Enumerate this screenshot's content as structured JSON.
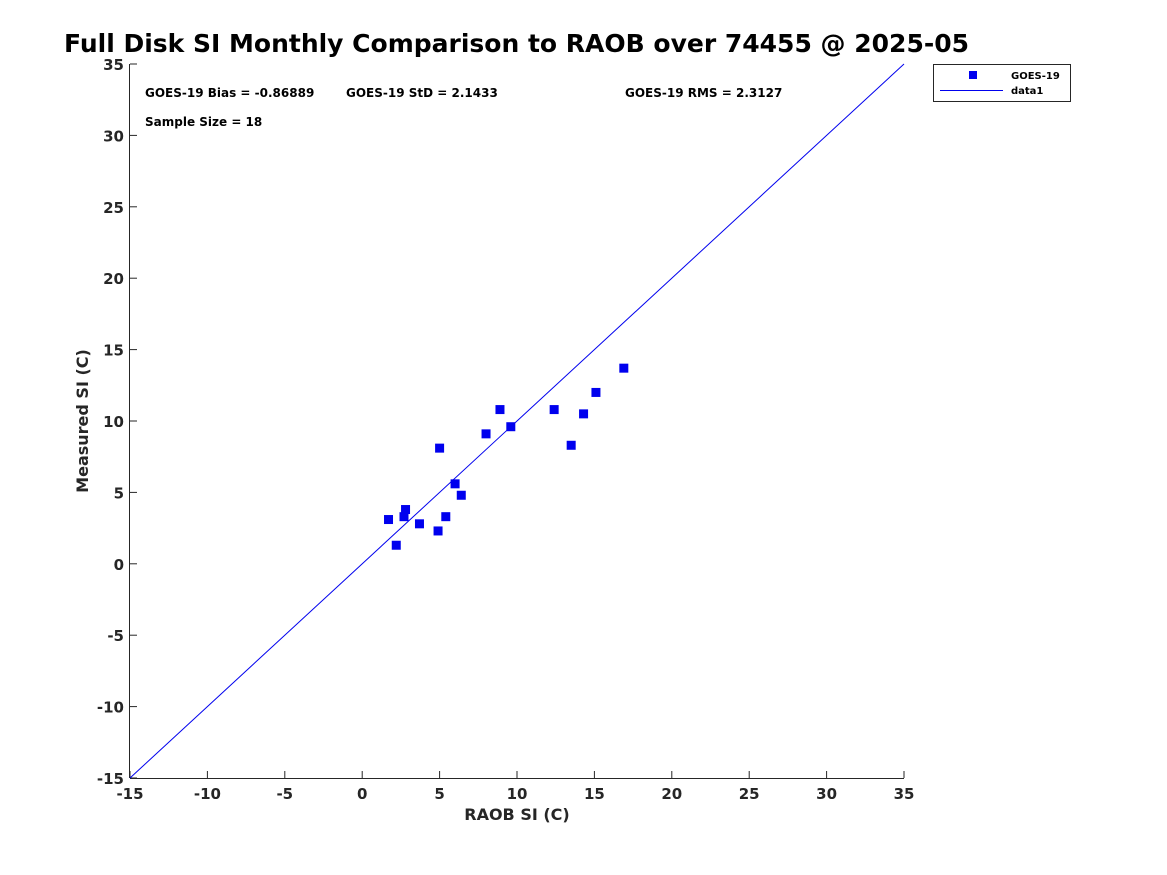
{
  "chart_data": {
    "type": "scatter",
    "title": "Full Disk SI Monthly Comparison to RAOB over 74455 @ 2025-05",
    "xlabel": "RAOB SI (C)",
    "ylabel": "Measured SI (C)",
    "xlim": [
      -15,
      35
    ],
    "ylim": [
      -15,
      35
    ],
    "xticks": [
      "-15",
      "-10",
      "-5",
      "0",
      "5",
      "10",
      "15",
      "20",
      "25",
      "30",
      "35"
    ],
    "yticks": [
      "35",
      "30",
      "25",
      "20",
      "15",
      "10",
      "5",
      "0",
      "-5",
      "-10",
      "-15"
    ],
    "annotations": {
      "bias": "GOES-19 Bias = -0.86889",
      "std": "GOES-19 StD = 2.1433",
      "rms": "GOES-19 RMS = 2.3127",
      "sample": "Sample Size = 18"
    },
    "legend": {
      "position": "outside top-right",
      "entries": [
        "GOES-19",
        "data1"
      ]
    },
    "marker_color": "#0000ee",
    "line_color": "#0000ee",
    "series": [
      {
        "name": "GOES-19",
        "type": "scatter",
        "x": [
          1.7,
          2.2,
          2.7,
          2.8,
          3.7,
          4.9,
          5.0,
          5.4,
          6.0,
          6.4,
          8.0,
          8.9,
          9.6,
          12.4,
          13.5,
          14.3,
          15.1,
          16.9
        ],
        "y": [
          3.1,
          1.3,
          3.3,
          3.8,
          2.8,
          2.3,
          8.1,
          3.3,
          5.6,
          4.8,
          9.1,
          10.8,
          9.6,
          10.8,
          8.3,
          10.5,
          12.0,
          13.7
        ]
      },
      {
        "name": "data1",
        "type": "line",
        "x": [
          -15,
          35
        ],
        "y": [
          -15,
          35
        ]
      }
    ]
  }
}
